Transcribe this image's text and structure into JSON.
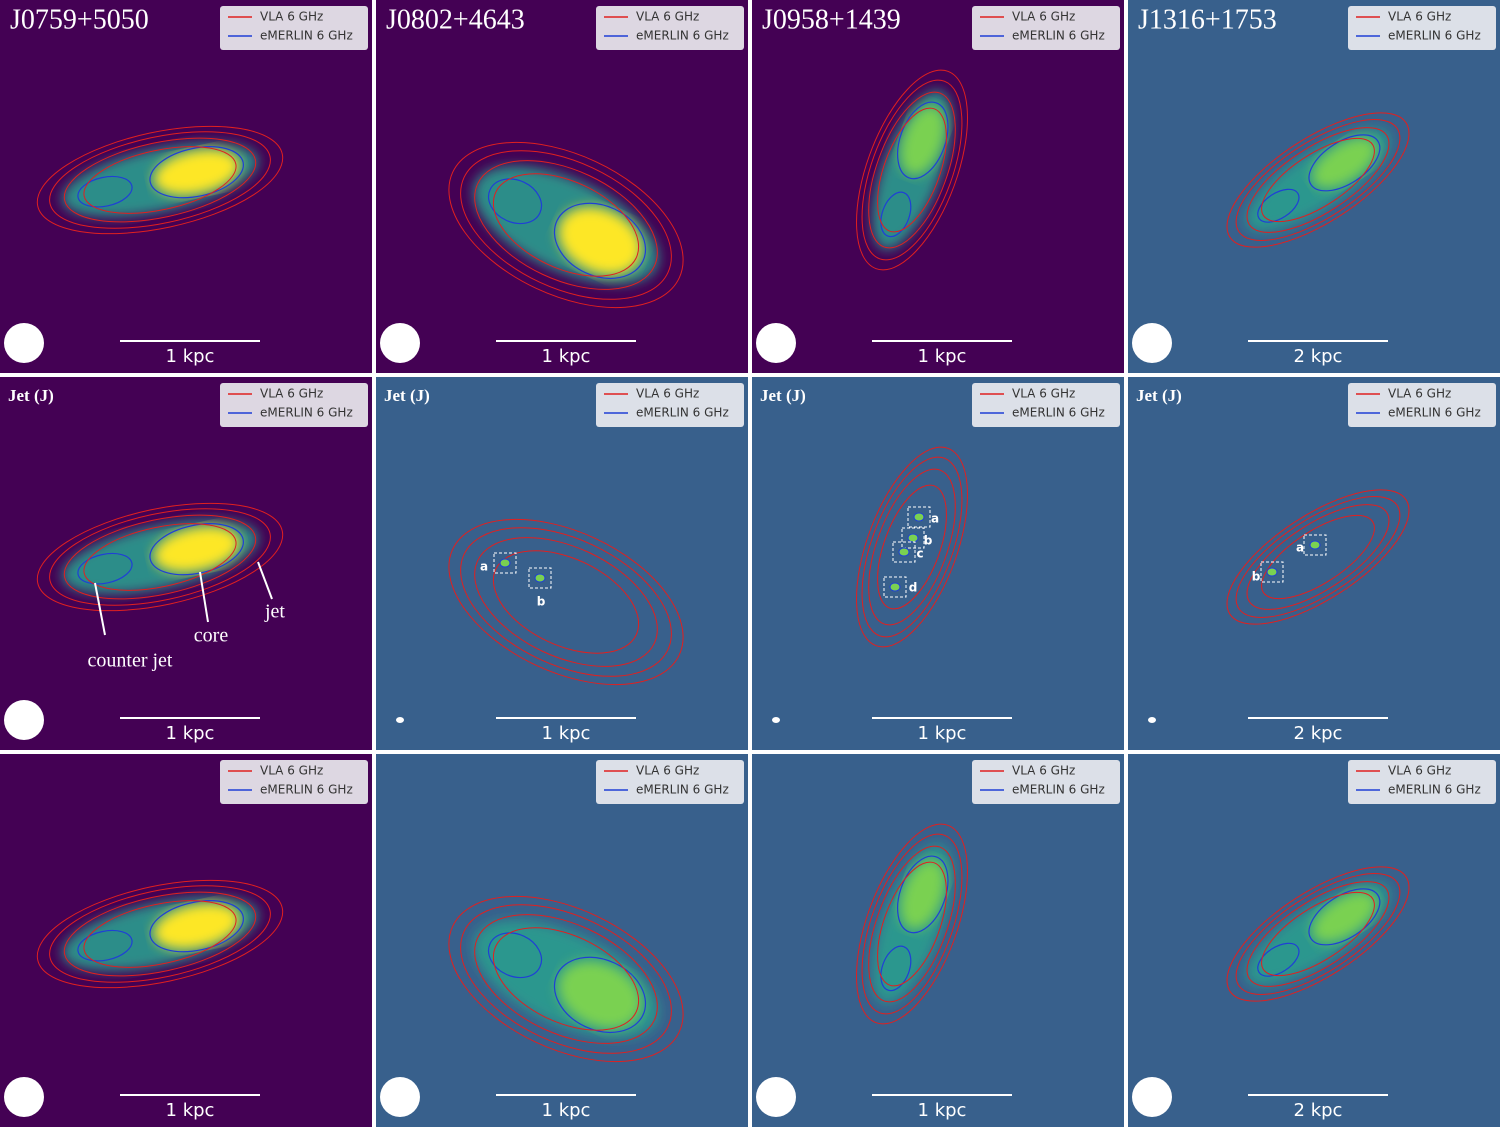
{
  "panels": [
    {
      "title": "J0759+5050",
      "legend": [
        "VLA 6 GHz",
        "eMERLIN 6 GHz"
      ],
      "scale_bar": "1 kpc"
    },
    {
      "title": "J0802+4643",
      "legend": [
        "VLA 6 GHz",
        "eMERLIN 6 GHz"
      ],
      "scale_bar": "1 kpc"
    },
    {
      "title": "J0958+1439",
      "legend": [
        "VLA 6 GHz",
        "eMERLIN 6 GHz"
      ],
      "scale_bar": "1 kpc"
    },
    {
      "title": "J1316+1753",
      "legend": [
        "VLA 6 GHz",
        "eMERLIN 6 GHz"
      ],
      "scale_bar": "2 kpc"
    },
    {
      "title": "Jet (J)",
      "legend": [
        "VLA 6 GHz",
        "eMERLIN 6 GHz"
      ],
      "scale_bar": "1 kpc",
      "annotations": [
        "counter jet",
        "core",
        "jet"
      ]
    },
    {
      "title": "Jet (J)",
      "legend": [
        "VLA 6 GHz",
        "eMERLIN 6 GHz"
      ],
      "scale_bar": "1 kpc",
      "annotations": [
        "a",
        "b"
      ]
    },
    {
      "title": "Jet (J)",
      "legend": [
        "VLA 6 GHz",
        "eMERLIN 6 GHz"
      ],
      "scale_bar": "1 kpc",
      "annotations": [
        "a",
        "b",
        "c",
        "d"
      ]
    },
    {
      "title": "Jet (J)",
      "legend": [
        "VLA 6 GHz",
        "eMERLIN 6 GHz"
      ],
      "scale_bar": "2 kpc",
      "annotations": [
        "a",
        "b"
      ]
    },
    {
      "legend": [
        "VLA 6 GHz",
        "eMERLIN 6 GHz"
      ],
      "scale_bar": "1 kpc"
    },
    {
      "legend": [
        "VLA 6 GHz",
        "eMERLIN 6 GHz"
      ],
      "scale_bar": "1 kpc"
    },
    {
      "legend": [
        "VLA 6 GHz",
        "eMERLIN 6 GHz"
      ],
      "scale_bar": "1 kpc"
    },
    {
      "legend": [
        "VLA 6 GHz",
        "eMERLIN 6 GHz"
      ],
      "scale_bar": "2 kpc"
    }
  ]
}
